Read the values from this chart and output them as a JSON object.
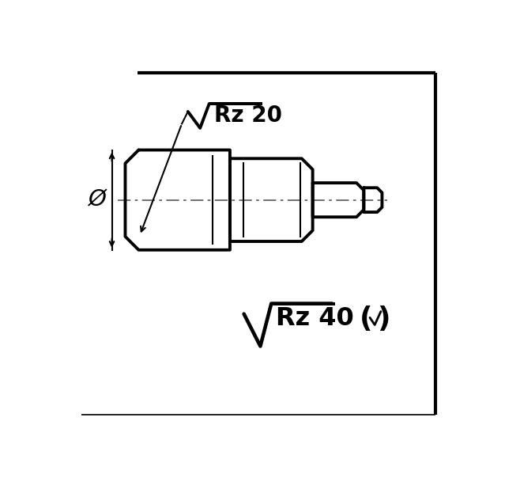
{
  "bg_color": "#ffffff",
  "line_color": "#000000",
  "dash_color": "#666666",
  "title_rz40": "Rz 40",
  "title_rz20": "Rz 20",
  "phi_label": "Ø",
  "figsize": [
    6.39,
    6.04
  ],
  "dpi": 100,
  "lw_thick": 2.8,
  "lw_thin": 1.5,
  "lw_border": 3.0
}
